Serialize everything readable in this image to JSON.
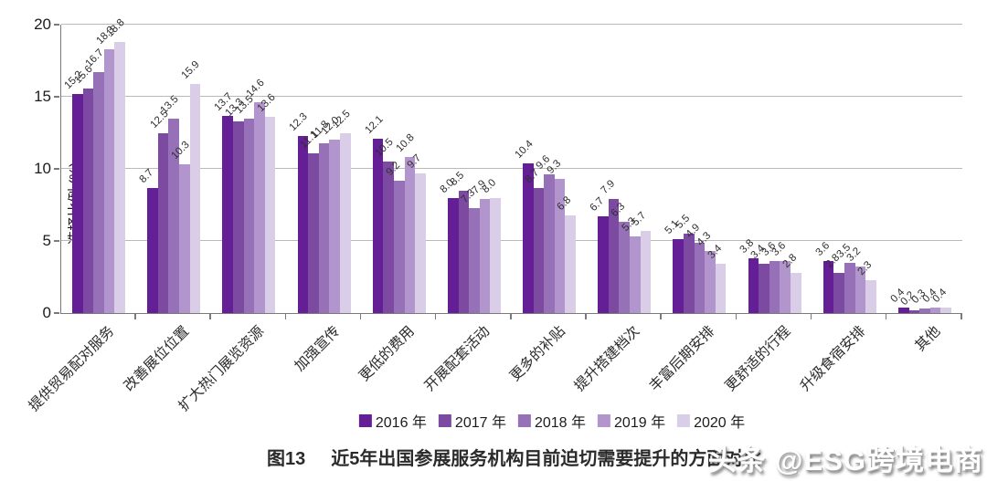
{
  "chart_data": {
    "type": "bar",
    "title": "图13 近5年出国参展服务机构目前迫切需要提升的方面对比",
    "ylabel": "选择比例 (%)",
    "xlabel": "",
    "ylim": [
      0,
      20
    ],
    "yticks": [
      0,
      5,
      10,
      15,
      20
    ],
    "grid": true,
    "legend_position": "bottom",
    "value_label_decimals": 1,
    "categories": [
      "提供贸易配对服务",
      "改善展位位置",
      "扩大热门展览资源",
      "加强宣传",
      "更低的费用",
      "开展配套活动",
      "更多的补贴",
      "提升搭建档次",
      "丰富后期安排",
      "更舒适的行程",
      "升级食宿安排",
      "其他"
    ],
    "series": [
      {
        "name": "2016 年",
        "color": "#651f96",
        "values": [
          15.2,
          8.7,
          13.7,
          12.3,
          12.1,
          8.0,
          10.4,
          6.7,
          5.1,
          3.8,
          3.6,
          0.4
        ]
      },
      {
        "name": "2017 年",
        "color": "#7c4ba1",
        "values": [
          15.6,
          12.5,
          13.3,
          11.1,
          10.5,
          8.5,
          8.7,
          7.9,
          5.5,
          3.4,
          2.8,
          0.2
        ]
      },
      {
        "name": "2018 年",
        "color": "#9671b8",
        "values": [
          16.7,
          13.5,
          13.5,
          11.8,
          9.2,
          7.3,
          9.6,
          6.3,
          4.9,
          3.6,
          3.5,
          0.3
        ]
      },
      {
        "name": "2019 年",
        "color": "#b295cc",
        "values": [
          18.3,
          10.3,
          14.6,
          12.0,
          10.8,
          7.9,
          9.3,
          5.3,
          4.3,
          3.6,
          3.2,
          0.4
        ]
      },
      {
        "name": "2020 年",
        "color": "#d9cde7",
        "values": [
          18.8,
          15.9,
          13.6,
          12.5,
          9.7,
          8.0,
          6.8,
          5.7,
          3.4,
          2.8,
          2.3,
          0.4
        ]
      }
    ]
  },
  "caption": {
    "figure_label": "图13",
    "title": "近5年出国参展服务机构目前迫切需要提升的方面对比"
  },
  "watermark": "头条 @ESG跨境电商"
}
